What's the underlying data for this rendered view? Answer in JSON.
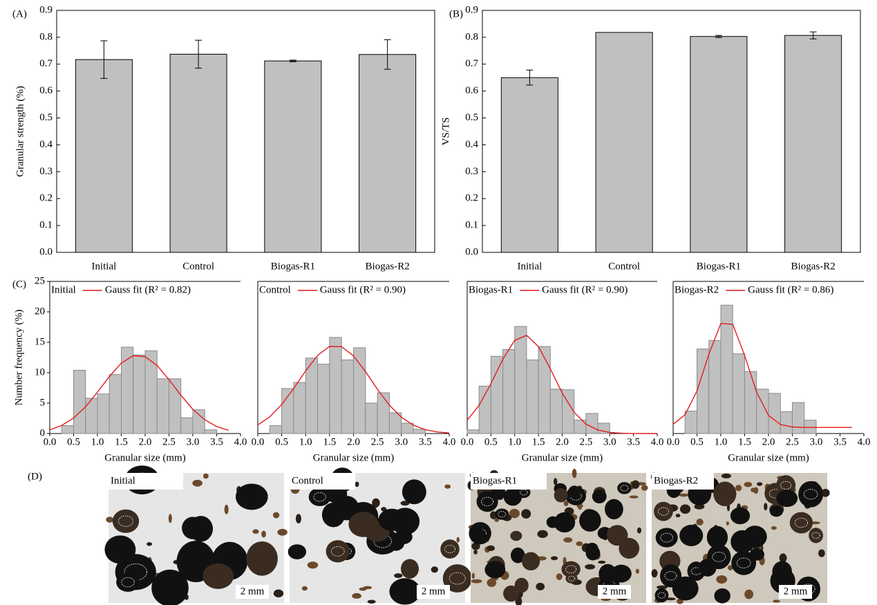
{
  "chart_data": [
    {
      "type": "bar",
      "panel": "(A)",
      "ylabel": "Granular strength (%)",
      "categories": [
        "Initial",
        "Control",
        "Biogas-R1",
        "Biogas-R2"
      ],
      "values": [
        0.717,
        0.737,
        0.712,
        0.736
      ],
      "errors": [
        0.07,
        0.052,
        0.003,
        0.055
      ],
      "color": "#c0c0c0",
      "ylim": [
        0,
        0.9
      ],
      "yticks": [
        {
          "value": 0,
          "label": "0.0"
        },
        0.1,
        0.2,
        0.3,
        0.4,
        0.5,
        0.6,
        0.7,
        0.8,
        0.9
      ]
    },
    {
      "type": "bar",
      "panel": "(B)",
      "ylabel": "VS/TS",
      "categories": [
        "Initial",
        "Control",
        "Biogas-R1",
        "Biogas-R2"
      ],
      "values": [
        0.65,
        0.818,
        0.803,
        0.807
      ],
      "errors": [
        0.028,
        null,
        0.004,
        0.013
      ],
      "color": "#c0c0c0",
      "ylim": [
        0,
        0.9
      ],
      "yticks": [
        {
          "value": 0,
          "label": "0.0"
        },
        0.1,
        0.2,
        0.3,
        0.4,
        0.5,
        0.6,
        0.7,
        0.8,
        0.9
      ]
    },
    {
      "type": "histogram",
      "panel": "(C)",
      "label": "Initial",
      "ylabel": "Number frequency (%)",
      "xlabel": "Granular size (mm)",
      "bins": [
        0.25,
        0.5,
        0.75,
        1.0,
        1.25,
        1.5,
        1.75,
        2.0,
        2.25,
        2.5,
        2.75,
        3.0,
        3.25,
        3.5
      ],
      "values": [
        1.3,
        10.4,
        5.8,
        6.5,
        9.7,
        14.2,
        12.9,
        13.6,
        9.0,
        9.0,
        2.6,
        3.9,
        0.6
      ],
      "color": "#c0c0c0",
      "fit": {
        "name": "Gauss fit (R² = 0.82)",
        "color": "#e41a1c",
        "x": [
          0,
          0.25,
          0.5,
          0.75,
          1.0,
          1.25,
          1.5,
          1.75,
          2.0,
          2.25,
          2.5,
          2.75,
          3.0,
          3.25,
          3.5,
          3.75
        ],
        "values": [
          0.62,
          1.32,
          2.55,
          4.4,
          6.79,
          9.37,
          11.57,
          12.79,
          12.64,
          11.19,
          8.86,
          6.28,
          3.98,
          2.26,
          1.15,
          0.52
        ]
      },
      "xlim": [
        0,
        4
      ],
      "ylim": [
        0,
        25
      ],
      "yticks": [
        0,
        5,
        10,
        15,
        20,
        25
      ],
      "xticks": [
        {
          "value": 0,
          "label": "0.0"
        },
        0.5,
        {
          "value": 1,
          "label": "1.0"
        },
        1.5,
        {
          "value": 2,
          "label": "2.0"
        },
        2.5,
        {
          "value": 3,
          "label": "3.0"
        },
        3.5,
        {
          "value": 4,
          "label": "4.0"
        }
      ]
    },
    {
      "type": "histogram",
      "label": "Control",
      "xlabel": "Granular size (mm)",
      "bins": [
        0.25,
        0.5,
        0.75,
        1.0,
        1.25,
        1.5,
        1.75,
        2.0,
        2.25,
        2.5,
        2.75,
        3.0,
        3.25,
        3.5
      ],
      "values": [
        1.3,
        7.4,
        8.4,
        12.4,
        11.4,
        15.8,
        12.1,
        14.1,
        5.0,
        6.7,
        3.4,
        1.7,
        0.7
      ],
      "color": "#c0c0c0",
      "fit": {
        "name": "Gauss fit (R² = 0.90)",
        "color": "#e41a1c",
        "x": [
          0,
          0.25,
          0.5,
          0.75,
          1.0,
          1.25,
          1.5,
          1.75,
          2.0,
          2.25,
          2.5,
          2.75,
          3.0,
          3.25,
          3.5,
          3.75,
          4.0
        ],
        "values": [
          1.41,
          2.74,
          4.76,
          7.4,
          10.3,
          12.84,
          14.32,
          14.28,
          12.76,
          10.19,
          7.28,
          4.66,
          2.67,
          1.37,
          0.63,
          0.26,
          0.09
        ]
      },
      "xlim": [
        0,
        4
      ],
      "ylim": [
        0,
        25
      ],
      "xticks": [
        {
          "value": 0,
          "label": "0.0"
        },
        0.5,
        {
          "value": 1,
          "label": "1.0"
        },
        1.5,
        {
          "value": 2,
          "label": "2.0"
        },
        2.5,
        {
          "value": 3,
          "label": "3.0"
        },
        3.5,
        {
          "value": 4,
          "label": "4.0"
        }
      ]
    },
    {
      "type": "histogram",
      "label": "Biogas-R1",
      "xlabel": "Granular size (mm)",
      "bins": [
        0,
        0.25,
        0.5,
        0.75,
        1.0,
        1.25,
        1.5,
        1.75,
        2.0,
        2.25,
        2.5,
        2.75,
        3.0
      ],
      "values": [
        0.6,
        7.8,
        12.7,
        13.8,
        17.6,
        12.1,
        14.3,
        7.3,
        7.2,
        2.2,
        3.3,
        1.7
      ],
      "color": "#c0c0c0",
      "fit": {
        "name": "Gauss fit (R² = 0.90)",
        "color": "#e41a1c",
        "x": [
          0,
          0.25,
          0.5,
          0.75,
          1.0,
          1.25,
          1.5,
          1.75,
          2.0,
          2.25,
          2.5,
          2.75,
          3.0,
          3.25,
          3.5,
          3.75,
          4.0
        ],
        "values": [
          2.19,
          4.63,
          8.2,
          12.23,
          15.32,
          16.14,
          14.29,
          10.64,
          6.66,
          3.5,
          1.55,
          0.58,
          0.18,
          0.05,
          0.01,
          0,
          0
        ]
      },
      "xlim": [
        0,
        4
      ],
      "ylim": [
        0,
        25
      ],
      "xticks": [
        {
          "value": 0,
          "label": "0.0"
        },
        0.5,
        {
          "value": 1,
          "label": "1.0"
        },
        1.5,
        {
          "value": 2,
          "label": "2.0"
        },
        2.5,
        {
          "value": 3,
          "label": "3.0"
        },
        3.5,
        {
          "value": 4,
          "label": "4.0"
        }
      ]
    },
    {
      "type": "histogram",
      "label": "Biogas-R2",
      "xlabel": "Granular size (mm)",
      "bins": [
        0.25,
        0.5,
        0.75,
        1.0,
        1.25,
        1.5,
        1.75,
        2.0,
        2.25,
        2.5,
        2.75,
        3.0
      ],
      "values": [
        3.7,
        13.9,
        15.3,
        21.1,
        13.1,
        10.2,
        7.3,
        6.6,
        3.6,
        5.1,
        2.2
      ],
      "color": "#c0c0c0",
      "fit": {
        "name": "Gauss fit (R² = 0.86)",
        "color": "#e41a1c",
        "x": [
          0,
          0.25,
          0.5,
          0.75,
          1.0,
          1.25,
          1.5,
          1.75,
          2.0,
          2.25,
          2.5,
          2.75,
          3.0,
          3.25,
          3.5,
          3.75
        ],
        "values": [
          1.51,
          3.09,
          7.0,
          13.07,
          18.09,
          17.96,
          12.82,
          6.79,
          2.98,
          1.48,
          1.08,
          1,
          1,
          1,
          1,
          1
        ]
      },
      "xlim": [
        0,
        4
      ],
      "ylim": [
        0,
        25
      ],
      "xticks": [
        {
          "value": 0,
          "label": "0.0"
        },
        0.5,
        {
          "value": 1,
          "label": "1.0"
        },
        1.5,
        {
          "value": 2,
          "label": "2.0"
        },
        2.5,
        {
          "value": 3,
          "label": "3.0"
        },
        3.5,
        {
          "value": 4,
          "label": "4.0"
        }
      ]
    }
  ],
  "photos": {
    "label": "(D)",
    "items": [
      {
        "label": "Initial",
        "scale": "2 mm"
      },
      {
        "label": "Control",
        "scale": "2 mm"
      },
      {
        "label": "Biogas-R1",
        "scale": "2 mm"
      },
      {
        "label": "Biogas-R2",
        "scale": "2 mm"
      }
    ]
  }
}
